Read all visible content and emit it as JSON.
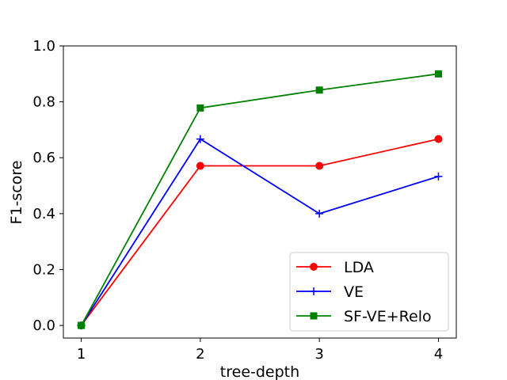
{
  "chart_data": {
    "type": "line",
    "title": "",
    "xlabel": "tree-depth",
    "ylabel": "F1-score",
    "x": [
      1,
      2,
      3,
      4
    ],
    "xlim": [
      0.85,
      4.15
    ],
    "ylim": [
      -0.045,
      1.0
    ],
    "xticks": [
      "1",
      "2",
      "3",
      "4"
    ],
    "yticks": [
      "0.0",
      "0.2",
      "0.4",
      "0.6",
      "0.8",
      "1.0"
    ],
    "grid": false,
    "legend_position": "lower-right",
    "series": [
      {
        "name": "LDA",
        "color": "#ff0000",
        "marker": "circle",
        "values": [
          0.0,
          0.571,
          0.571,
          0.667
        ]
      },
      {
        "name": "VE",
        "color": "#0000ff",
        "marker": "plus",
        "values": [
          0.0,
          0.667,
          0.4,
          0.533
        ]
      },
      {
        "name": "SF-VE+Relo",
        "color": "#008000",
        "marker": "square",
        "values": [
          0.0,
          0.778,
          0.842,
          0.9
        ]
      }
    ]
  }
}
